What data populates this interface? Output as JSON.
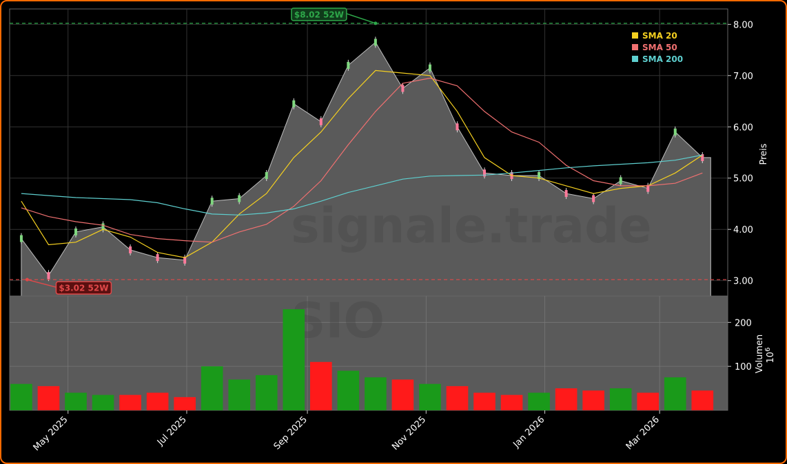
{
  "chart_data": [
    {
      "type": "line",
      "panel": "price",
      "ylabel": "Preis",
      "ylim": [
        2.7,
        8.3
      ],
      "yticks": [
        "3.00",
        "4.00",
        "5.00",
        "6.00",
        "7.00",
        "8.00"
      ],
      "grid": true,
      "legend_position": "top-right",
      "watermark": "signale.trade",
      "x_dates": [
        "2025-04-07",
        "2025-04-21",
        "2025-05-05",
        "2025-05-19",
        "2025-06-02",
        "2025-06-16",
        "2025-06-30",
        "2025-07-14",
        "2025-07-28",
        "2025-08-11",
        "2025-08-25",
        "2025-09-08",
        "2025-09-22",
        "2025-10-06",
        "2025-10-20",
        "2025-11-03",
        "2025-11-17",
        "2025-12-01",
        "2025-12-15",
        "2025-12-29",
        "2026-01-12",
        "2026-01-26",
        "2026-02-09",
        "2026-02-23",
        "2026-03-09",
        "2026-03-23"
      ],
      "close": [
        3.82,
        3.1,
        3.95,
        4.05,
        3.6,
        3.45,
        3.4,
        4.55,
        4.6,
        5.05,
        6.45,
        6.1,
        7.2,
        7.65,
        6.75,
        7.15,
        6.0,
        5.1,
        5.05,
        5.05,
        4.7,
        4.6,
        4.95,
        4.8,
        5.9,
        5.4
      ],
      "series": [
        {
          "name": "SMA 20",
          "color": "#f5d020",
          "values": [
            4.55,
            3.7,
            3.75,
            4.0,
            3.85,
            3.55,
            3.45,
            3.75,
            4.3,
            4.7,
            5.4,
            5.9,
            6.55,
            7.1,
            7.05,
            7.0,
            6.3,
            5.4,
            5.05,
            5.0,
            4.85,
            4.7,
            4.8,
            4.85,
            5.1,
            5.45
          ]
        },
        {
          "name": "SMA 50",
          "color": "#f07070",
          "values": [
            4.42,
            4.25,
            4.15,
            4.08,
            3.9,
            3.82,
            3.78,
            3.75,
            3.95,
            4.1,
            4.45,
            4.95,
            5.65,
            6.3,
            6.85,
            6.95,
            6.8,
            6.3,
            5.9,
            5.7,
            5.25,
            4.95,
            4.85,
            4.85,
            4.9,
            5.1
          ]
        },
        {
          "name": "SMA 200",
          "color": "#5ecfcf",
          "values": [
            4.7,
            4.66,
            4.62,
            4.6,
            4.58,
            4.52,
            4.4,
            4.3,
            4.28,
            4.32,
            4.4,
            4.55,
            4.72,
            4.85,
            4.98,
            5.04,
            5.05,
            5.06,
            5.1,
            5.15,
            5.2,
            5.24,
            5.27,
            5.3,
            5.35,
            5.45
          ]
        }
      ],
      "annotations": [
        {
          "text": "$8.02 52W",
          "value": 8.02,
          "date": "2025-10-06",
          "color": "#2ea84a"
        },
        {
          "text": "$3.02 52W",
          "value": 3.02,
          "date": "2025-04-10",
          "color": "#e0494a"
        }
      ]
    },
    {
      "type": "bar",
      "panel": "volume",
      "ylabel": "Volumen",
      "ylabel_exponent": "10",
      "ylabel_exponent_power": "6",
      "ylim": [
        0,
        260
      ],
      "yticks": [
        "100",
        "200"
      ],
      "watermark": "SIO",
      "xticks": [
        "May 2025",
        "Jul 2025",
        "Sep 2025",
        "Nov 2025",
        "Jan 2026",
        "Mar 2026"
      ],
      "xtick_dates": [
        "2025-05-01",
        "2025-07-01",
        "2025-09-01",
        "2025-11-01",
        "2026-01-01",
        "2026-03-01"
      ],
      "x_dates": [
        "2025-04-07",
        "2025-04-21",
        "2025-05-05",
        "2025-05-19",
        "2025-06-02",
        "2025-06-16",
        "2025-06-30",
        "2025-07-14",
        "2025-07-28",
        "2025-08-11",
        "2025-08-25",
        "2025-09-08",
        "2025-09-22",
        "2025-10-06",
        "2025-10-20",
        "2025-11-03",
        "2025-11-17",
        "2025-12-01",
        "2025-12-15",
        "2025-12-29",
        "2026-01-12",
        "2026-01-26",
        "2026-02-09",
        "2026-02-23",
        "2026-03-09",
        "2026-03-23"
      ],
      "values": [
        60,
        55,
        40,
        35,
        35,
        40,
        30,
        100,
        70,
        80,
        230,
        110,
        90,
        75,
        70,
        60,
        55,
        40,
        35,
        40,
        50,
        45,
        50,
        40,
        75,
        45
      ],
      "colors": {
        "up": "#1a9a1a",
        "down": "#ff1a1a"
      }
    }
  ]
}
